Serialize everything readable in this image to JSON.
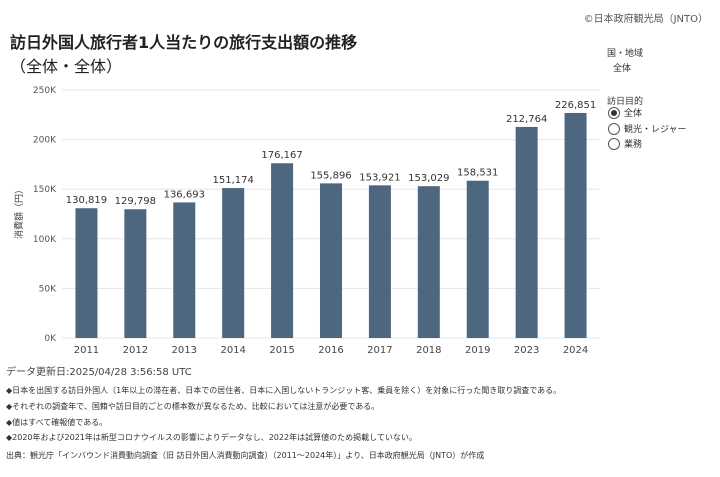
{
  "header": {
    "copyright": "©日本政府観光局（JNTO）",
    "title": "訪日外国人旅行者1人当たりの旅行支出額の推移",
    "subtitle": "（全体・全体）"
  },
  "filters": {
    "region_label": "国・地域",
    "region_value": "全体",
    "purpose_label": "訪日目的",
    "purpose_options": [
      {
        "label": "全体",
        "selected": true
      },
      {
        "label": "観光・レジャー",
        "selected": false
      },
      {
        "label": "業務",
        "selected": false
      }
    ]
  },
  "chart_data": {
    "type": "bar",
    "categories": [
      "2011",
      "2012",
      "2013",
      "2014",
      "2015",
      "2016",
      "2017",
      "2018",
      "2019",
      "2023",
      "2024"
    ],
    "values": [
      130819,
      129798,
      136693,
      151174,
      176167,
      155896,
      153921,
      153029,
      158531,
      212764,
      226851
    ],
    "value_labels": [
      "130,819",
      "129,798",
      "136,693",
      "151,174",
      "176,167",
      "155,896",
      "153,921",
      "153,029",
      "158,531",
      "212,764",
      "226,851"
    ],
    "ylabel": "消費額（円）",
    "ylim": [
      0,
      250000
    ],
    "yticks": [
      0,
      50000,
      100000,
      150000,
      200000,
      250000
    ],
    "ytick_labels": [
      "0K",
      "50K",
      "100K",
      "150K",
      "200K",
      "250K"
    ],
    "grid": true,
    "bar_color": "#4e6780"
  },
  "footer": {
    "updated": "データ更新日:2025/04/28 3:56:58 UTC",
    "notes": [
      "◆日本を出国する訪日外国人（1年以上の滞在者、日本での居住者、日本に入国しないトランジット客、乗員を除く）を対象に行った聞き取り調査である。",
      "◆それぞれの調査年で、国籍や訪日目的ごとの標本数が異なるため、比較においては注意が必要である。",
      "◆値はすべて確報値である。",
      "◆2020年および2021年は新型コロナウイルスの影響によりデータなし、2022年は試算値のため掲載していない。"
    ],
    "source": "出典：観光庁「インバウンド消費動向調査（旧 訪日外国人消費動向調査）（2011～2024年）」より、日本政府観光局（JNTO）が作成"
  }
}
